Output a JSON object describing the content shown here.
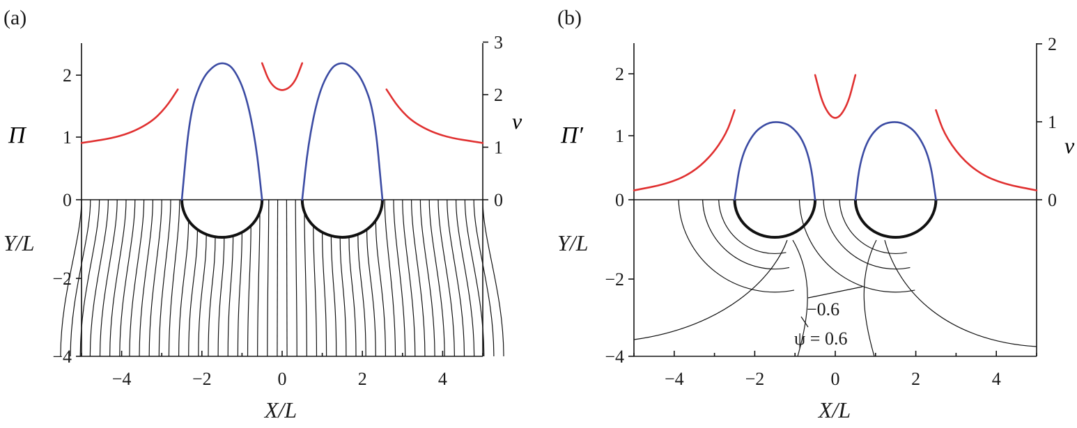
{
  "colors": {
    "pi_curve": "#3b4ba3",
    "v_curve": "#e03030",
    "ink": "#111111"
  },
  "chart_data": [
    {
      "type": "line",
      "panel_label": "(a)",
      "xlabel": "X/L",
      "left_top_label": "Π",
      "left_bottom_label": "Y/L",
      "right_label": "v",
      "xlim": [
        -5,
        5
      ],
      "xticks": [
        "−4",
        "−2",
        "0",
        "2",
        "4"
      ],
      "left_yticks": [
        "2",
        "1",
        "0",
        "−2",
        "−4"
      ],
      "right_yticks": [
        "3",
        "2",
        "1",
        "0"
      ],
      "right_ylim": [
        0,
        3
      ],
      "series": [
        {
          "name": "Π",
          "x": [
            -2.5,
            -2.3,
            -2.0,
            -1.7,
            -1.45,
            -1.2,
            -0.9,
            -0.65,
            -0.5
          ],
          "y": [
            0.0,
            1.4,
            1.95,
            2.17,
            2.22,
            2.12,
            1.7,
            0.9,
            0.0
          ]
        },
        {
          "name": "Π",
          "x": [
            0.5,
            0.65,
            0.9,
            1.2,
            1.45,
            1.7,
            2.0,
            2.3,
            2.5
          ],
          "y": [
            0.0,
            0.9,
            1.7,
            2.12,
            2.22,
            2.17,
            1.95,
            1.4,
            0.0
          ]
        },
        {
          "name": "v",
          "x": [
            -5.0,
            -4.0,
            -3.3,
            -2.9,
            -2.6
          ],
          "y": [
            1.08,
            1.2,
            1.45,
            1.75,
            2.1
          ]
        },
        {
          "name": "v",
          "x": [
            -0.5,
            -0.3,
            0.0,
            0.3,
            0.5
          ],
          "y": [
            2.6,
            2.2,
            2.05,
            2.2,
            2.6
          ]
        },
        {
          "name": "v",
          "x": [
            2.6,
            2.9,
            3.3,
            4.0,
            5.0
          ],
          "y": [
            2.1,
            1.75,
            1.45,
            1.2,
            1.08
          ]
        }
      ],
      "streamlines": {
        "count_per_side": 18,
        "y_range": [
          -4,
          0
        ],
        "body_centers": [
          -1.5,
          1.5
        ],
        "body_radius": 1.0
      }
    },
    {
      "type": "line",
      "panel_label": "(b)",
      "xlabel": "X/L",
      "left_top_label": "Π′",
      "left_bottom_label": "Y/L",
      "right_label": "v",
      "xlim": [
        -5,
        5
      ],
      "xticks": [
        "−4",
        "−2",
        "0",
        "2",
        "4"
      ],
      "left_yticks": [
        "2",
        "1",
        "0",
        "−2",
        "−4"
      ],
      "right_yticks": [
        "2",
        "1",
        "0"
      ],
      "right_ylim": [
        0,
        2
      ],
      "series": [
        {
          "name": "Π′",
          "x": [
            -2.5,
            -2.35,
            -2.05,
            -1.7,
            -1.4,
            -1.1,
            -0.8,
            -0.6,
            -0.5
          ],
          "y": [
            0.0,
            0.65,
            1.05,
            1.22,
            1.24,
            1.18,
            0.95,
            0.55,
            0.0
          ]
        },
        {
          "name": "Π′",
          "x": [
            0.5,
            0.6,
            0.8,
            1.1,
            1.4,
            1.7,
            2.05,
            2.35,
            2.5
          ],
          "y": [
            0.0,
            0.55,
            0.95,
            1.18,
            1.24,
            1.22,
            1.05,
            0.65,
            0.0
          ]
        },
        {
          "name": "v",
          "x": [
            -5.0,
            -4.2,
            -3.6,
            -3.1,
            -2.7,
            -2.5
          ],
          "y": [
            0.12,
            0.2,
            0.33,
            0.55,
            0.85,
            1.15
          ]
        },
        {
          "name": "v",
          "x": [
            -0.5,
            -0.3,
            0.0,
            0.3,
            0.5
          ],
          "y": [
            1.6,
            1.2,
            1.0,
            1.2,
            1.6
          ]
        },
        {
          "name": "v",
          "x": [
            2.5,
            2.7,
            3.1,
            3.6,
            4.2,
            5.0
          ],
          "y": [
            1.15,
            0.85,
            0.55,
            0.33,
            0.2,
            0.12
          ]
        }
      ],
      "annotations": [
        "−0.6",
        "ψ = 0.6"
      ]
    }
  ]
}
